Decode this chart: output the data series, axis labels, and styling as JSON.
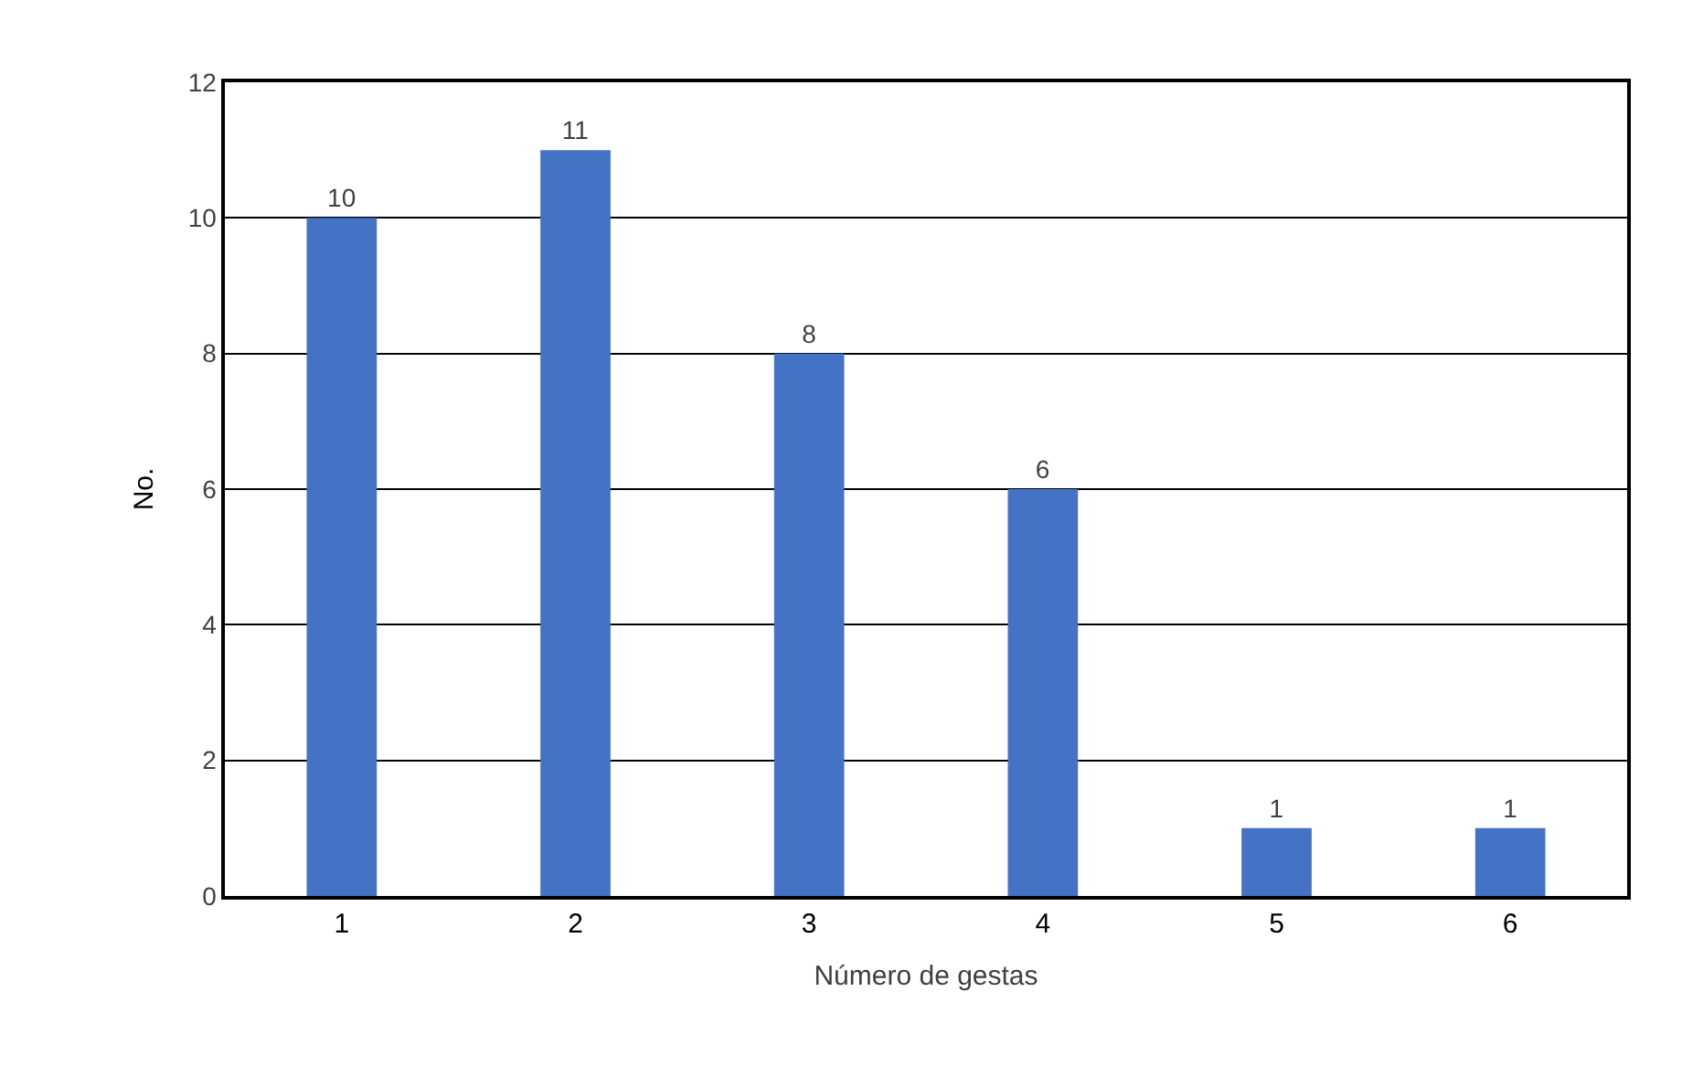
{
  "chart_data": {
    "type": "bar",
    "xlabel": "Número de gestas",
    "ylabel": "No.",
    "categories": [
      "1",
      "2",
      "3",
      "4",
      "5",
      "6"
    ],
    "values": [
      10,
      11,
      8,
      6,
      1,
      1
    ],
    "color": "#4472c4",
    "ylim": [
      0,
      12
    ],
    "yticks": [
      0,
      2,
      4,
      6,
      8,
      10,
      12
    ],
    "grid": "y",
    "data_labels": true,
    "legend": false
  }
}
